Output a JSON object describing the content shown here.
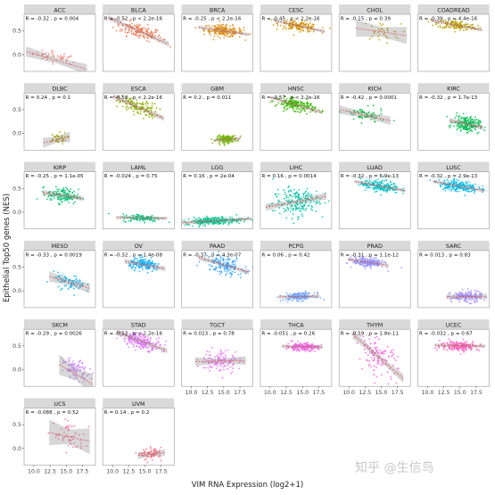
{
  "chart_data": {
    "type": "scatter",
    "xlabel": "VIM RNA Expression (log2+1)",
    "ylabel": "Epithelial Top50 genes (NES)",
    "xlim": [
      8.5,
      19.5
    ],
    "ylim": [
      -0.35,
      0.85
    ],
    "x_ticks": [
      "10.0",
      "12.5",
      "15.0",
      "17.5"
    ],
    "y_ticks": [
      "0.0",
      "0.5"
    ],
    "panels": [
      {
        "name": "ACC",
        "stat": "R = -0.32 , p = 0.004",
        "color": "#f8766d",
        "cx": 13.5,
        "cy": -0.05,
        "sx": 1.8,
        "sy": 0.06,
        "n": 40,
        "slope": -0.04,
        "intercept": 0.42,
        "band": 0.06
      },
      {
        "name": "BLCA",
        "stat": "R = -0.52 , p < 2.2e-16",
        "color": "#ee7a53",
        "cx": 14.0,
        "cy": 0.5,
        "sx": 1.8,
        "sy": 0.08,
        "n": 160,
        "slope": -0.06,
        "intercept": 1.34,
        "band": 0.03
      },
      {
        "name": "BRCA",
        "stat": "R = -0.25 , p < 2.2e-16",
        "color": "#d98a0f",
        "cx": 15.0,
        "cy": 0.5,
        "sx": 1.5,
        "sy": 0.06,
        "n": 200,
        "slope": -0.02,
        "intercept": 0.8,
        "band": 0.02
      },
      {
        "name": "CESC",
        "stat": "R = -0.45 , p < 2.2e-16",
        "color": "#d39200",
        "cx": 14.5,
        "cy": 0.6,
        "sx": 1.5,
        "sy": 0.05,
        "n": 150,
        "slope": -0.03,
        "intercept": 1.04,
        "band": 0.02
      },
      {
        "name": "CHOL",
        "stat": "R = -0.15 , p = 0.39",
        "color": "#c79a00",
        "cx": 15.0,
        "cy": 0.48,
        "sx": 1.5,
        "sy": 0.1,
        "n": 36,
        "slope": -0.02,
        "intercept": 0.78,
        "band": 0.1
      },
      {
        "name": "COADREAD",
        "stat": "R = -0.39 , p = 4.4e-16",
        "color": "#b8a000",
        "cx": 14.5,
        "cy": 0.62,
        "sx": 1.5,
        "sy": 0.05,
        "n": 150,
        "slope": -0.025,
        "intercept": 0.98,
        "band": 0.02
      },
      {
        "name": "DLBC",
        "stat": "R = 0.24 , p = 0.1",
        "color": "#a3a500",
        "cx": 13.5,
        "cy": -0.12,
        "sx": 0.8,
        "sy": 0.06,
        "n": 40,
        "slope": 0.03,
        "intercept": -0.54,
        "band": 0.06
      },
      {
        "name": "ESCA",
        "stat": "R = -0.58 , p < 2.2e-16",
        "color": "#8dac00",
        "cx": 14.0,
        "cy": 0.55,
        "sx": 1.5,
        "sy": 0.08,
        "n": 150,
        "slope": -0.06,
        "intercept": 1.39,
        "band": 0.03
      },
      {
        "name": "GBM",
        "stat": "R = 0.2 , p = 0.011",
        "color": "#70b500",
        "cx": 15.5,
        "cy": -0.12,
        "sx": 0.8,
        "sy": 0.04,
        "n": 150,
        "slope": 0.01,
        "intercept": -0.28,
        "band": 0.02
      },
      {
        "name": "HNSC",
        "stat": "R = -0.57 , p < 2.2e-16",
        "color": "#39b600",
        "cx": 14.0,
        "cy": 0.6,
        "sx": 1.5,
        "sy": 0.06,
        "n": 200,
        "slope": -0.04,
        "intercept": 1.16,
        "band": 0.02
      },
      {
        "name": "KICH",
        "stat": "R = -0.42 , p = 0.0001",
        "color": "#00ba38",
        "cx": 12.5,
        "cy": 0.38,
        "sx": 1.5,
        "sy": 0.08,
        "n": 70,
        "slope": -0.03,
        "intercept": 0.76,
        "band": 0.05
      },
      {
        "name": "KIRC",
        "stat": "R = -0.32 , p = 1.7e-13",
        "color": "#00bb4e",
        "cx": 16.0,
        "cy": 0.2,
        "sx": 1.0,
        "sy": 0.08,
        "n": 200,
        "slope": -0.03,
        "intercept": 0.68,
        "band": 0.03
      },
      {
        "name": "KIRP",
        "stat": "R = -0.25 , p = 1.1e-05",
        "color": "#00be6c",
        "cx": 14.5,
        "cy": 0.35,
        "sx": 1.2,
        "sy": 0.08,
        "n": 150,
        "slope": -0.02,
        "intercept": 0.64,
        "band": 0.03
      },
      {
        "name": "LAML",
        "stat": "R = -0.024 , p = 0.75",
        "color": "#00bf7d",
        "cx": 14.5,
        "cy": -0.12,
        "sx": 1.5,
        "sy": 0.04,
        "n": 120,
        "slope": -0.002,
        "intercept": -0.09,
        "band": 0.02
      },
      {
        "name": "LGG",
        "stat": "R = 0.16 , p = 2e-04",
        "color": "#00c08b",
        "cx": 13.5,
        "cy": -0.18,
        "sx": 2.2,
        "sy": 0.04,
        "n": 250,
        "slope": 0.008,
        "intercept": -0.29,
        "band": 0.02
      },
      {
        "name": "LIHC",
        "stat": "R = 0.16 , p = 0.0014",
        "color": "#00c0a3",
        "cx": 14.0,
        "cy": 0.22,
        "sx": 1.8,
        "sy": 0.15,
        "n": 200,
        "slope": 0.025,
        "intercept": -0.13,
        "band": 0.04
      },
      {
        "name": "LUAD",
        "stat": "R = -0.32 , p = 6.9e-13",
        "color": "#00bfc4",
        "cx": 14.8,
        "cy": 0.55,
        "sx": 1.5,
        "sy": 0.06,
        "n": 200,
        "slope": -0.025,
        "intercept": 0.92,
        "band": 0.02
      },
      {
        "name": "LUSC",
        "stat": "R = -0.32 , p = 2.9e-13",
        "color": "#00b8e7",
        "cx": 14.8,
        "cy": 0.55,
        "sx": 1.5,
        "sy": 0.06,
        "n": 200,
        "slope": -0.025,
        "intercept": 0.92,
        "band": 0.02
      },
      {
        "name": "MESO",
        "stat": "R = -0.33 , p = 0.0019",
        "color": "#00b3f2",
        "cx": 15.5,
        "cy": 0.18,
        "sx": 1.2,
        "sy": 0.08,
        "n": 80,
        "slope": -0.04,
        "intercept": 0.8,
        "band": 0.06
      },
      {
        "name": "OV",
        "stat": "R = -0.32 , p = 1.4e-08",
        "color": "#00a9ff",
        "cx": 15.0,
        "cy": 0.55,
        "sx": 1.2,
        "sy": 0.06,
        "n": 150,
        "slope": -0.025,
        "intercept": 0.92,
        "band": 0.03
      },
      {
        "name": "PAAD",
        "stat": "R = -0.37 , p = 4.3e-07",
        "color": "#35a2ff",
        "cx": 15.0,
        "cy": 0.55,
        "sx": 1.5,
        "sy": 0.1,
        "n": 150,
        "slope": -0.04,
        "intercept": 1.15,
        "band": 0.03
      },
      {
        "name": "PCPG",
        "stat": "R = 0.06 , p = 0.42",
        "color": "#6a9dff",
        "cx": 14.5,
        "cy": -0.12,
        "sx": 1.2,
        "sy": 0.04,
        "n": 150,
        "slope": 0.003,
        "intercept": -0.16,
        "band": 0.02
      },
      {
        "name": "PRAD",
        "stat": "R = -0.31 , p = 1.1e-12",
        "color": "#9590ff",
        "cx": 13.0,
        "cy": 0.6,
        "sx": 1.2,
        "sy": 0.05,
        "n": 200,
        "slope": -0.02,
        "intercept": 0.86,
        "band": 0.02
      },
      {
        "name": "SARC",
        "stat": "R = 0.013 , p = 0.83",
        "color": "#a58aff",
        "cx": 16.0,
        "cy": -0.12,
        "sx": 1.2,
        "sy": 0.06,
        "n": 150,
        "slope": 0.002,
        "intercept": -0.15,
        "band": 0.03
      },
      {
        "name": "SKCM",
        "stat": "R = -0.29 , p = 0.0026",
        "color": "#c77cff",
        "cx": 16.5,
        "cy": 0.0,
        "sx": 1.0,
        "sy": 0.1,
        "n": 90,
        "slope": -0.08,
        "intercept": 1.22,
        "band": 0.12
      },
      {
        "name": "STAD",
        "stat": "R = -0.52 , p < 2.2e-16",
        "color": "#dc71fa",
        "cx": 14.5,
        "cy": 0.6,
        "sx": 1.5,
        "sy": 0.08,
        "n": 200,
        "slope": -0.05,
        "intercept": 1.32,
        "band": 0.03
      },
      {
        "name": "TGCT",
        "stat": "R = 0.023 , p = 0.78",
        "color": "#e76bf3",
        "cx": 14.5,
        "cy": 0.18,
        "sx": 1.5,
        "sy": 0.12,
        "n": 120,
        "slope": 0.003,
        "intercept": 0.14,
        "band": 0.05
      },
      {
        "name": "THCA",
        "stat": "R = -0.051 , p = 0.26",
        "color": "#f365e6",
        "cx": 15.0,
        "cy": 0.48,
        "sx": 1.2,
        "sy": 0.04,
        "n": 200,
        "slope": -0.003,
        "intercept": 0.53,
        "band": 0.02
      },
      {
        "name": "THYM",
        "stat": "R = -0.59 , p = 1.8e-11",
        "color": "#fa62db",
        "cx": 14.5,
        "cy": 0.28,
        "sx": 1.5,
        "sy": 0.18,
        "n": 120,
        "slope": -0.12,
        "intercept": 2.02,
        "band": 0.05
      },
      {
        "name": "UCEC",
        "stat": "R = -0.032 , p = 0.67",
        "color": "#ff62bc",
        "cx": 15.0,
        "cy": 0.5,
        "sx": 1.5,
        "sy": 0.05,
        "n": 200,
        "slope": -0.003,
        "intercept": 0.55,
        "band": 0.02
      },
      {
        "name": "UCS",
        "stat": "R = -0.088 , p = 0.52",
        "color": "#ff6a98",
        "cx": 15.5,
        "cy": 0.25,
        "sx": 1.2,
        "sy": 0.15,
        "n": 55,
        "slope": -0.03,
        "intercept": 0.71,
        "band": 0.15
      },
      {
        "name": "UVM",
        "stat": "R = 0.14 , p = 0.2",
        "color": "#fd6f85",
        "cx": 16.0,
        "cy": -0.12,
        "sx": 0.8,
        "sy": 0.06,
        "n": 80,
        "slope": 0.015,
        "intercept": -0.36,
        "band": 0.04
      }
    ]
  },
  "watermark": "知乎 @生信鸟"
}
